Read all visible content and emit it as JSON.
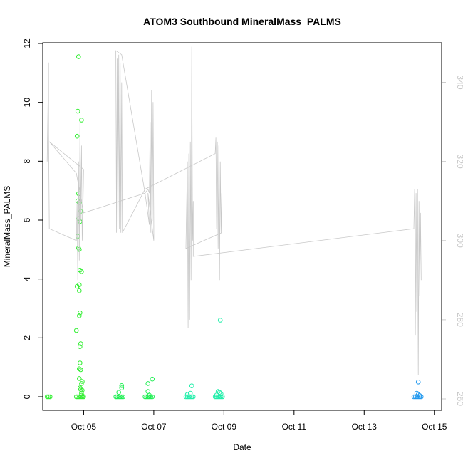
{
  "chart_data": {
    "type": "scatter",
    "title": "ATOM3 Southbound MineralMass_PALMS",
    "xlabel": "Date",
    "ylabel": "MineralMass_PALMS",
    "x_range": [
      "2017-10-03T20:00",
      "2017-10-15T05:00"
    ],
    "ylim": [
      0,
      12
    ],
    "y2lim": [
      260,
      350
    ],
    "grid": false,
    "x_ticks": [
      {
        "date": "2017-10-05",
        "label": "Oct 05"
      },
      {
        "date": "2017-10-07",
        "label": "Oct 07"
      },
      {
        "date": "2017-10-09",
        "label": "Oct 09"
      },
      {
        "date": "2017-10-11",
        "label": "Oct 11"
      },
      {
        "date": "2017-10-13",
        "label": "Oct 13"
      },
      {
        "date": "2017-10-15",
        "label": "Oct 15"
      }
    ],
    "y_ticks": [
      "0",
      "2",
      "4",
      "6",
      "8",
      "10",
      "12"
    ],
    "y2_ticks": [
      "260",
      "280",
      "300",
      "320",
      "340"
    ],
    "series": [
      {
        "kind": "points",
        "color": "#33ee33",
        "points": [
          [
            "2017-10-03T23:00",
            0
          ],
          [
            "2017-10-04T00:00",
            0
          ],
          [
            "2017-10-04T01:00",
            0
          ],
          [
            "2017-10-04T19:30",
            8.85
          ],
          [
            "2017-10-04T20:30",
            11.55
          ],
          [
            "2017-10-04T20:00",
            9.7
          ],
          [
            "2017-10-04T22:30",
            9.4
          ],
          [
            "2017-10-04T20:30",
            6.9
          ],
          [
            "2017-10-04T20:00",
            6.65
          ],
          [
            "2017-10-04T21:00",
            6.6
          ],
          [
            "2017-10-04T22:00",
            6.3
          ],
          [
            "2017-10-04T20:30",
            6.05
          ],
          [
            "2017-10-04T21:30",
            5.95
          ],
          [
            "2017-10-04T20:00",
            5.45
          ],
          [
            "2017-10-04T20:30",
            5.05
          ],
          [
            "2017-10-04T21:00",
            5.0
          ],
          [
            "2017-10-04T21:30",
            4.3
          ],
          [
            "2017-10-04T22:30",
            4.25
          ],
          [
            "2017-10-04T19:30",
            3.75
          ],
          [
            "2017-10-04T21:00",
            3.8
          ],
          [
            "2017-10-04T21:00",
            3.6
          ],
          [
            "2017-10-04T21:30",
            2.85
          ],
          [
            "2017-10-04T21:00",
            2.75
          ],
          [
            "2017-10-04T19:00",
            2.25
          ],
          [
            "2017-10-04T22:00",
            1.8
          ],
          [
            "2017-10-04T21:30",
            1.7
          ],
          [
            "2017-10-04T21:30",
            1.15
          ],
          [
            "2017-10-04T21:00",
            0.95
          ],
          [
            "2017-10-04T22:00",
            0.92
          ],
          [
            "2017-10-04T21:00",
            0.62
          ],
          [
            "2017-10-04T23:00",
            0.52
          ],
          [
            "2017-10-04T22:30",
            0.45
          ],
          [
            "2017-10-04T21:30",
            0.3
          ],
          [
            "2017-10-04T22:00",
            0.25
          ],
          [
            "2017-10-04T23:00",
            0.22
          ],
          [
            "2017-10-04T22:30",
            0.12
          ],
          [
            "2017-10-04T19:00",
            0
          ],
          [
            "2017-10-04T20:00",
            0
          ],
          [
            "2017-10-04T21:00",
            0
          ],
          [
            "2017-10-04T22:00",
            0
          ],
          [
            "2017-10-04T23:00",
            0
          ],
          [
            "2017-10-05T00:00",
            0
          ],
          [
            "2017-10-04T22:30",
            0.05
          ],
          [
            "2017-10-04T23:30",
            0.02
          ]
        ]
      },
      {
        "kind": "points",
        "color": "#22ee55",
        "points": [
          [
            "2017-10-05T22:00",
            0
          ],
          [
            "2017-10-05T23:00",
            0
          ],
          [
            "2017-10-06T00:00",
            0
          ],
          [
            "2017-10-06T01:00",
            0
          ],
          [
            "2017-10-06T02:00",
            0
          ],
          [
            "2017-10-06T03:00",
            0
          ],
          [
            "2017-10-06T02:00",
            0.38
          ],
          [
            "2017-10-06T02:00",
            0.3
          ],
          [
            "2017-10-06T00:00",
            0.15
          ],
          [
            "2017-10-06T18:00",
            0
          ],
          [
            "2017-10-06T19:00",
            0
          ],
          [
            "2017-10-06T20:00",
            0
          ],
          [
            "2017-10-06T21:00",
            0
          ],
          [
            "2017-10-06T22:00",
            0
          ],
          [
            "2017-10-06T23:00",
            0
          ],
          [
            "2017-10-06T20:00",
            0.45
          ],
          [
            "2017-10-06T23:00",
            0.6
          ],
          [
            "2017-10-06T20:00",
            0.18
          ],
          [
            "2017-10-06T21:00",
            0.05
          ]
        ]
      },
      {
        "kind": "points",
        "color": "#22eeaa",
        "points": [
          [
            "2017-10-07T22:00",
            0
          ],
          [
            "2017-10-07T23:00",
            0
          ],
          [
            "2017-10-08T00:00",
            0
          ],
          [
            "2017-10-08T01:00",
            0
          ],
          [
            "2017-10-08T02:00",
            0
          ],
          [
            "2017-10-08T03:00",
            0
          ],
          [
            "2017-10-08T02:00",
            0.37
          ],
          [
            "2017-10-08T01:00",
            0.12
          ],
          [
            "2017-10-07T23:00",
            0.08
          ],
          [
            "2017-10-08T18:00",
            0
          ],
          [
            "2017-10-08T19:00",
            0
          ],
          [
            "2017-10-08T20:00",
            0
          ],
          [
            "2017-10-08T21:00",
            0
          ],
          [
            "2017-10-08T22:00",
            0
          ],
          [
            "2017-10-08T23:00",
            0
          ],
          [
            "2017-10-08T21:30",
            2.6
          ],
          [
            "2017-10-08T20:00",
            0.18
          ],
          [
            "2017-10-08T21:00",
            0.15
          ],
          [
            "2017-10-08T22:00",
            0.1
          ],
          [
            "2017-10-08T19:00",
            0.06
          ]
        ]
      },
      {
        "kind": "points",
        "color": "#2299ee",
        "points": [
          [
            "2017-10-14T13:00",
            0.5
          ],
          [
            "2017-10-14T12:00",
            0.12
          ],
          [
            "2017-10-14T13:00",
            0.08
          ],
          [
            "2017-10-14T10:00",
            0
          ],
          [
            "2017-10-14T11:00",
            0
          ],
          [
            "2017-10-14T12:00",
            0
          ],
          [
            "2017-10-14T13:00",
            0
          ],
          [
            "2017-10-14T14:00",
            0
          ],
          [
            "2017-10-14T15:00",
            0
          ],
          [
            "2017-10-14T14:00",
            0.04
          ]
        ]
      },
      {
        "kind": "line",
        "axis": "right",
        "color": "#c8c8c8",
        "points": [
          [
            "2017-10-03T23:00",
            320
          ],
          [
            "2017-10-04T00:00",
            345
          ],
          [
            "2017-10-04T00:00",
            327
          ],
          [
            "2017-10-04T00:30",
            303
          ],
          [
            "2017-10-04T19:00",
            300
          ],
          [
            "2017-10-04T19:30",
            310
          ],
          [
            "2017-10-04T20:00",
            290
          ],
          [
            "2017-10-04T20:30",
            320
          ],
          [
            "2017-10-04T21:00",
            295
          ],
          [
            "2017-10-04T21:30",
            330
          ],
          [
            "2017-10-04T22:00",
            305
          ],
          [
            "2017-10-04T22:30",
            324
          ],
          [
            "2017-10-04T23:00",
            300
          ],
          [
            "2017-10-04T23:30",
            308
          ],
          [
            "2017-10-05T00:00",
            318
          ],
          [
            "2017-10-04T00:30",
            325
          ],
          [
            "2017-10-04T19:00",
            317
          ],
          [
            "2017-10-05T00:00",
            307
          ],
          [
            "2017-10-06T18:00",
            312
          ],
          [
            "2017-10-06T20:00",
            313
          ],
          [
            "2017-10-06T21:00",
            312
          ],
          [
            "2017-10-06T21:30",
            330
          ],
          [
            "2017-10-06T22:00",
            302
          ],
          [
            "2017-10-06T22:30",
            338
          ],
          [
            "2017-10-06T23:00",
            305
          ],
          [
            "2017-10-06T23:30",
            335
          ],
          [
            "2017-10-07T00:00",
            304
          ],
          [
            "2017-10-07T00:00",
            300
          ],
          [
            "2017-10-06T20:00",
            312
          ],
          [
            "2017-10-06T21:00",
            304
          ],
          [
            "2017-10-06T18:00",
            312
          ],
          [
            "2017-10-06T02:00",
            347
          ],
          [
            "2017-10-05T22:00",
            348
          ],
          [
            "2017-10-05T22:30",
            302
          ],
          [
            "2017-10-05T23:00",
            346
          ],
          [
            "2017-10-05T23:30",
            303
          ],
          [
            "2017-10-06T00:00",
            347
          ],
          [
            "2017-10-06T00:30",
            303
          ],
          [
            "2017-10-06T01:00",
            345
          ],
          [
            "2017-10-06T01:30",
            302
          ],
          [
            "2017-10-06T02:00",
            340
          ],
          [
            "2017-10-06T02:30",
            302
          ],
          [
            "2017-10-06T18:00",
            313
          ],
          [
            "2017-10-08T18:00",
            322
          ],
          [
            "2017-10-08T18:30",
            326
          ],
          [
            "2017-10-08T19:00",
            303
          ],
          [
            "2017-10-08T19:30",
            325
          ],
          [
            "2017-10-08T20:00",
            298
          ],
          [
            "2017-10-08T20:30",
            324
          ],
          [
            "2017-10-08T21:00",
            290
          ],
          [
            "2017-10-08T21:30",
            320
          ],
          [
            "2017-10-08T22:00",
            302
          ],
          [
            "2017-10-08T22:30",
            312
          ],
          [
            "2017-10-08T22:30",
            302
          ],
          [
            "2017-10-07T22:00",
            298
          ],
          [
            "2017-10-07T23:00",
            320
          ],
          [
            "2017-10-07T23:30",
            278
          ],
          [
            "2017-10-08T00:00",
            322
          ],
          [
            "2017-10-08T00:30",
            280
          ],
          [
            "2017-10-08T01:00",
            325
          ],
          [
            "2017-10-08T01:30",
            290
          ],
          [
            "2017-10-08T02:00",
            349
          ],
          [
            "2017-10-08T02:30",
            300
          ],
          [
            "2017-10-08T03:00",
            310
          ],
          [
            "2017-10-08T03:00",
            296
          ],
          [
            "2017-10-14T10:00",
            303
          ],
          [
            "2017-10-14T10:30",
            313
          ],
          [
            "2017-10-14T11:00",
            276
          ],
          [
            "2017-10-14T11:30",
            312
          ],
          [
            "2017-10-14T12:00",
            282
          ],
          [
            "2017-10-14T12:30",
            313
          ],
          [
            "2017-10-14T13:00",
            266
          ],
          [
            "2017-10-14T13:30",
            310
          ],
          [
            "2017-10-14T14:00",
            286
          ],
          [
            "2017-10-14T14:30",
            307
          ],
          [
            "2017-10-14T15:00",
            290
          ]
        ]
      }
    ]
  }
}
